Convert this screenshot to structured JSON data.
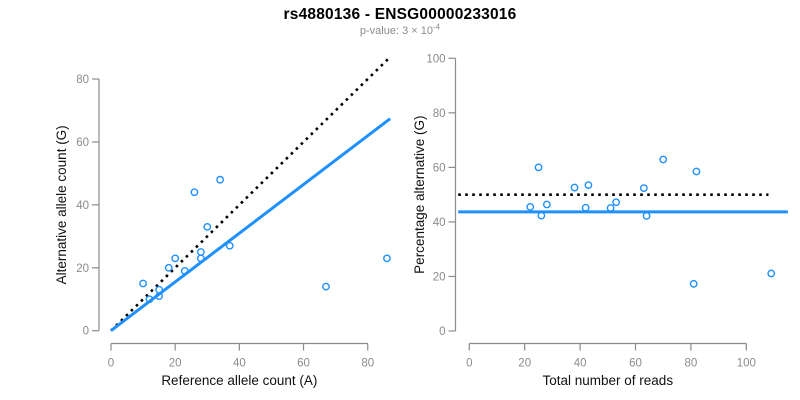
{
  "header": {
    "title": "rs4880136 - ENSG00000233016",
    "pvalue_label": "p-value: 3 × 10",
    "pvalue_exponent": "-4"
  },
  "colors": {
    "point_blue": "#1E90FF",
    "line_blue": "#1E90FF",
    "dashed_line": "#000000",
    "axis": "#8b8b8b",
    "tick_label": "#8b8b8b",
    "axis_title": "#111111",
    "title": "#000000",
    "subtitle": "#8b8b8b",
    "background": "#FFFFFF"
  },
  "chart_data": [
    {
      "type": "scatter",
      "name": "allele-count-panel",
      "title": "",
      "xlabel": "Reference allele count (A)",
      "ylabel": "Alternative allele count (G)",
      "xlim": [
        0,
        90
      ],
      "ylim": [
        0,
        90
      ],
      "xticks": [
        0,
        20,
        40,
        60,
        80
      ],
      "yticks": [
        0,
        20,
        40,
        60,
        80
      ],
      "grid": false,
      "legend": "none",
      "points": [
        [
          10,
          15
        ],
        [
          12,
          10
        ],
        [
          15,
          11
        ],
        [
          15,
          13
        ],
        [
          18,
          20
        ],
        [
          20,
          23
        ],
        [
          23,
          19
        ],
        [
          26,
          44
        ],
        [
          28,
          23
        ],
        [
          28,
          25
        ],
        [
          30,
          33
        ],
        [
          34,
          48
        ],
        [
          37,
          27
        ],
        [
          67,
          14
        ],
        [
          86,
          23
        ]
      ],
      "lines": [
        {
          "label": "identity y = x (50% expectation)",
          "style": "dashed",
          "color_key": "dashed_line",
          "from": [
            0,
            0
          ],
          "to": [
            87,
            87
          ]
        },
        {
          "label": "fitted ratio y = 0.775x",
          "style": "solid",
          "color_key": "line_blue",
          "from": [
            0,
            0
          ],
          "to": [
            87,
            67.4
          ]
        }
      ]
    },
    {
      "type": "scatter",
      "name": "percentage-panel",
      "title": "",
      "xlabel": "Total number of reads",
      "ylabel": "Percentage alternative (G)",
      "xlim": [
        0,
        112
      ],
      "ylim": [
        0,
        100
      ],
      "xticks": [
        0,
        20,
        40,
        60,
        80,
        100
      ],
      "yticks": [
        0,
        20,
        40,
        60,
        80,
        100
      ],
      "grid": false,
      "legend": "none",
      "points": [
        [
          25,
          60
        ],
        [
          22,
          45.5
        ],
        [
          26,
          42.3
        ],
        [
          28,
          46.4
        ],
        [
          38,
          52.6
        ],
        [
          42,
          45.2
        ],
        [
          43,
          53.5
        ],
        [
          51,
          45.1
        ],
        [
          53,
          47.2
        ],
        [
          63,
          52.4
        ],
        [
          64,
          42.2
        ],
        [
          70,
          62.9
        ],
        [
          81,
          17.3
        ],
        [
          82,
          58.5
        ],
        [
          109,
          21.1
        ]
      ],
      "lines": [
        {
          "label": "50% expectation",
          "style": "dashed",
          "color_key": "dashed_line",
          "from": [
            -4,
            50
          ],
          "to": [
            108,
            50
          ]
        },
        {
          "label": "mean percentage 43.7%",
          "style": "solid",
          "color_key": "line_blue",
          "from": [
            -4,
            43.7
          ],
          "to": [
            115,
            43.7
          ]
        }
      ]
    }
  ]
}
